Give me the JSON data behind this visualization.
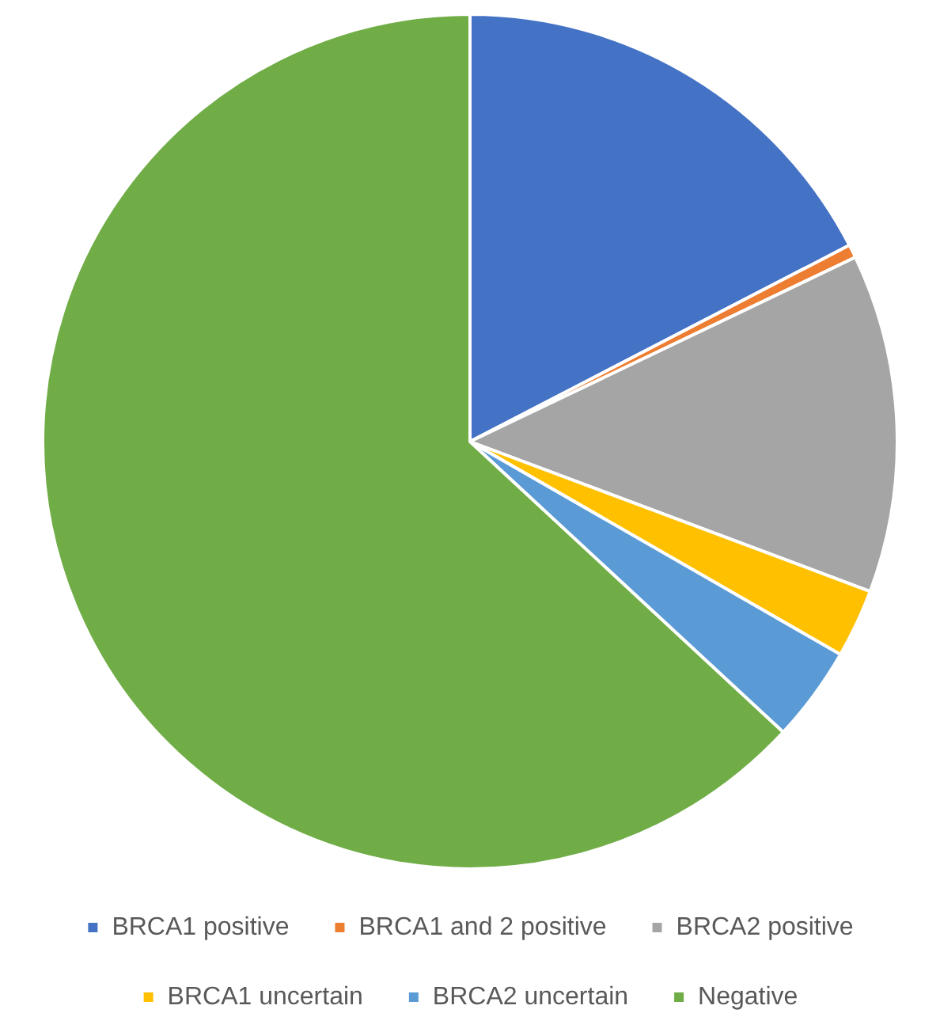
{
  "chart_data": {
    "type": "pie",
    "categories": [
      "BRCA1 positive",
      "BRCA1 and 2 positive",
      "BRCA2 positive",
      "BRCA1 uncertain",
      "BRCA2 uncertain",
      "Negative"
    ],
    "values": [
      17.4,
      0.5,
      12.8,
      2.6,
      3.6,
      63.1
    ],
    "colors": [
      "#4472c4",
      "#ed7d31",
      "#a5a5a5",
      "#ffc000",
      "#5b9bd5",
      "#70ad47"
    ],
    "legend": "bottom"
  }
}
